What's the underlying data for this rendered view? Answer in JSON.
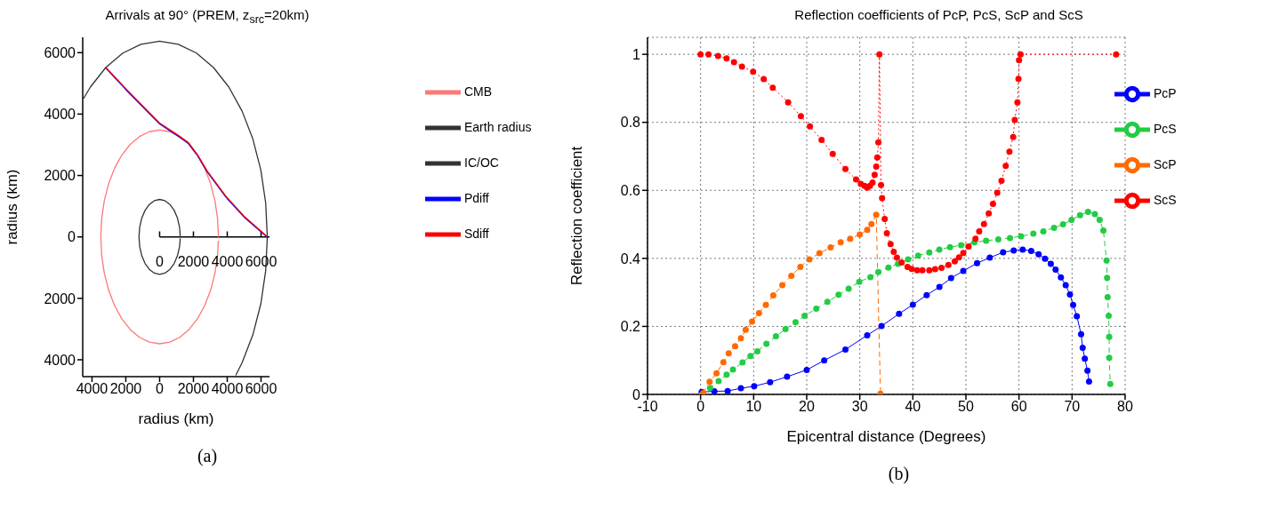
{
  "chart_data": [
    {
      "type": "line",
      "title": "Arrivals at 90° (PREM, z$_{src}$=20km)",
      "xlabel": "radius (km)",
      "ylabel": "radius (km)",
      "xlim": [
        -4550,
        6500
      ],
      "ylim": [
        -4550,
        6500
      ],
      "xticks": [
        {
          "value": -4000,
          "label": "4000"
        },
        {
          "value": -2000,
          "label": "2000"
        },
        0,
        2000,
        4000,
        6000
      ],
      "yticks": [
        {
          "value": -4000,
          "label": "4000"
        },
        {
          "value": -2000,
          "label": "2000"
        },
        0,
        2000,
        4000,
        6000
      ],
      "x2lim": [
        0,
        6500
      ],
      "x2ticks": [
        0,
        2000,
        4000,
        6000
      ],
      "legend": "right",
      "grid": false,
      "annotations": [
        "(a)"
      ],
      "series": [
        {
          "name": "CMB",
          "color": "#ff7777",
          "x": [
            3480,
            3427,
            3270,
            3014,
            2666,
            2237,
            1740,
            1190,
            604,
            0,
            -604,
            -1190,
            -1740,
            -2237,
            -2666,
            -3014,
            -3270,
            -3427,
            -3480,
            -3427,
            -3270,
            -3014,
            -2666,
            -2237,
            -1740,
            -1190,
            -604,
            0,
            604,
            1190,
            1740,
            2237,
            2666,
            3014,
            3270,
            3427,
            3478
          ],
          "values": [
            0,
            604,
            1190,
            1740,
            2237,
            2666,
            3014,
            3270,
            3427,
            3480,
            3427,
            3270,
            3014,
            2666,
            2237,
            1740,
            1190,
            604,
            0,
            -604,
            -1190,
            -1740,
            -2237,
            -2666,
            -3014,
            -3270,
            -3427,
            -3480,
            -3427,
            -3270,
            -3014,
            -2666,
            -2237,
            -1740,
            -1190,
            -604,
            -121
          ]
        },
        {
          "name": "Earth radius",
          "color": "#333333",
          "x": [
            -4505,
            -4095,
            -3186,
            -2179,
            -1106,
            0,
            1106,
            2179,
            3186,
            4095,
            4880,
            5517,
            5987,
            6274,
            6371,
            6274,
            5987,
            5517,
            4880,
            4505
          ],
          "values": [
            4505,
            4880,
            5517,
            5987,
            6274,
            6371,
            6274,
            5987,
            5517,
            4880,
            4095,
            3186,
            2179,
            1106,
            0,
            -1106,
            -2179,
            -3186,
            -4095,
            -4505
          ]
        },
        {
          "name": "IC/OC",
          "color": "#333333",
          "x": [
            1221,
            1179,
            1057,
            863,
            611,
            316,
            0,
            -316,
            -611,
            -863,
            -1057,
            -1179,
            -1221,
            -1179,
            -1057,
            -863,
            -611,
            -316,
            0,
            316,
            611,
            863,
            1057,
            1179,
            1220
          ],
          "values": [
            0,
            316,
            611,
            863,
            1057,
            1179,
            1221,
            1179,
            1057,
            863,
            611,
            316,
            0,
            -316,
            -611,
            -863,
            -1057,
            -1179,
            -1221,
            -1179,
            -1057,
            -863,
            -611,
            -316,
            -43
          ]
        },
        {
          "name": "Pdiff",
          "color": "#0000ff",
          "x": [
            -3200,
            -2020,
            -1120,
            0,
            1120,
            1690,
            2250,
            2810,
            3930,
            5060,
            6350
          ],
          "values": [
            5510,
            4810,
            4300,
            3680,
            3270,
            3050,
            2640,
            2120,
            1290,
            610,
            0
          ]
        },
        {
          "name": "Sdiff",
          "color": "#ff0000",
          "x": [
            -3200,
            -2020,
            -1120,
            0,
            1120,
            1690,
            2250,
            2810,
            3930,
            5060,
            6350
          ],
          "values": [
            5530,
            4840,
            4330,
            3710,
            3300,
            3080,
            2670,
            2150,
            1320,
            640,
            20
          ]
        }
      ]
    },
    {
      "type": "line",
      "title": "Reflection coefficients of PcP, PcS, ScP and ScS",
      "xlabel": "Epicentral distance (Degrees)",
      "ylabel": "Reflection coefficient",
      "xlim": [
        -10,
        80
      ],
      "ylim": [
        0,
        1.05
      ],
      "xticks": [
        -10,
        0,
        10,
        20,
        30,
        40,
        50,
        60,
        70,
        80
      ],
      "yticks": [
        0,
        0.2,
        0.4,
        0.6,
        0.8,
        1
      ],
      "legend": "top right",
      "grid": true,
      "marker": "circle",
      "annotations": [
        "(b)"
      ],
      "series": [
        {
          "name": "PcP",
          "color": "#0000ff",
          "line_style": "solid",
          "x": [
            0.2,
            2.6,
            5.1,
            7.6,
            10.1,
            13.1,
            16.3,
            20.0,
            23.3,
            27.3,
            31.4,
            34.1,
            37.4,
            40.0,
            42.6,
            45.0,
            47.2,
            49.5,
            52.1,
            54.5,
            57.0,
            59.0,
            60.7,
            62.3,
            63.7,
            64.9,
            66.0,
            66.9,
            67.9,
            68.8,
            69.6,
            70.2,
            70.9,
            71.7,
            72.0,
            72.4,
            72.9,
            73.2
          ],
          "values": [
            0.007,
            0.009,
            0.01,
            0.018,
            0.024,
            0.036,
            0.052,
            0.072,
            0.1,
            0.132,
            0.174,
            0.201,
            0.237,
            0.264,
            0.292,
            0.316,
            0.342,
            0.363,
            0.386,
            0.402,
            0.418,
            0.423,
            0.426,
            0.422,
            0.412,
            0.399,
            0.384,
            0.367,
            0.344,
            0.321,
            0.294,
            0.263,
            0.23,
            0.177,
            0.137,
            0.105,
            0.07,
            0.038
          ]
        },
        {
          "name": "PcS",
          "color": "#22cc44",
          "line_style": "dashed",
          "x": [
            0.3,
            1.8,
            3.4,
            4.9,
            6.1,
            7.9,
            9.4,
            10.7,
            12.4,
            14.2,
            16.0,
            17.9,
            19.6,
            21.8,
            23.9,
            26.0,
            27.9,
            29.9,
            32.0,
            33.5,
            35.4,
            37.2,
            39.1,
            41.0,
            43.1,
            45.0,
            47.0,
            49.1,
            51.6,
            53.8,
            56.1,
            58.3,
            60.4,
            62.7,
            64.6,
            66.6,
            68.3,
            69.9,
            71.5,
            73.0,
            74.3,
            75.2,
            75.9,
            76.5,
            76.6,
            76.7,
            76.9,
            77.0,
            77.0,
            77.2
          ],
          "values": [
            0,
            0.019,
            0.039,
            0.058,
            0.073,
            0.094,
            0.113,
            0.127,
            0.149,
            0.171,
            0.192,
            0.212,
            0.231,
            0.252,
            0.272,
            0.293,
            0.311,
            0.331,
            0.345,
            0.36,
            0.373,
            0.384,
            0.397,
            0.408,
            0.417,
            0.426,
            0.433,
            0.439,
            0.447,
            0.452,
            0.456,
            0.46,
            0.465,
            0.473,
            0.479,
            0.49,
            0.5,
            0.513,
            0.527,
            0.537,
            0.53,
            0.513,
            0.482,
            0.394,
            0.343,
            0.286,
            0.231,
            0.169,
            0.108,
            0.031
          ]
        },
        {
          "name": "ScP",
          "color": "#ff6a00",
          "line_style": "dashed",
          "x": [
            0.5,
            1.7,
            3.0,
            4.3,
            5.3,
            6.5,
            7.6,
            8.5,
            9.7,
            11.0,
            12.3,
            13.7,
            15.4,
            17.1,
            18.8,
            20.5,
            22.4,
            24.5,
            26.4,
            28.2,
            30.0,
            31.4,
            32.2,
            33.1,
            33.9
          ],
          "values": [
            0.004,
            0.037,
            0.062,
            0.095,
            0.121,
            0.142,
            0.165,
            0.19,
            0.214,
            0.239,
            0.263,
            0.291,
            0.321,
            0.349,
            0.375,
            0.397,
            0.415,
            0.432,
            0.447,
            0.458,
            0.47,
            0.484,
            0.501,
            0.528,
            0.002
          ]
        },
        {
          "name": "ScS",
          "color": "#ff0000",
          "line_style": "dotted",
          "x": [
            0,
            1.5,
            3.3,
            4.9,
            6.3,
            7.8,
            9.9,
            11.9,
            13.6,
            16.5,
            18.9,
            20.6,
            22.8,
            24.9,
            27.3,
            29.3,
            30.2,
            30.9,
            31.4,
            31.9,
            32.4,
            32.8,
            33.1,
            33.3,
            33.5,
            33.7,
            34.0,
            34.2,
            34.7,
            35.1,
            35.8,
            36.4,
            37.0,
            37.9,
            39.0,
            39.8,
            40.8,
            41.8,
            43.1,
            44.2,
            45.4,
            46.7,
            47.9,
            48.7,
            49.5,
            50.5,
            51.8,
            52.5,
            53.4,
            54.3,
            55.1,
            55.9,
            56.7,
            57.5,
            58.2,
            58.9,
            59.2,
            59.7,
            59.9,
            60.0,
            60.3,
            78.3
          ],
          "values": [
            1,
            1,
            0.995,
            0.988,
            0.977,
            0.964,
            0.949,
            0.927,
            0.902,
            0.859,
            0.818,
            0.788,
            0.748,
            0.707,
            0.663,
            0.632,
            0.619,
            0.613,
            0.608,
            0.613,
            0.623,
            0.646,
            0.67,
            0.697,
            0.741,
            1.0,
            0.616,
            0.577,
            0.516,
            0.474,
            0.442,
            0.419,
            0.402,
            0.388,
            0.375,
            0.369,
            0.365,
            0.365,
            0.365,
            0.368,
            0.372,
            0.381,
            0.391,
            0.403,
            0.416,
            0.435,
            0.458,
            0.479,
            0.501,
            0.532,
            0.56,
            0.593,
            0.628,
            0.672,
            0.714,
            0.757,
            0.807,
            0.859,
            0.928,
            0.983,
            1.0,
            1.0
          ]
        }
      ]
    }
  ]
}
